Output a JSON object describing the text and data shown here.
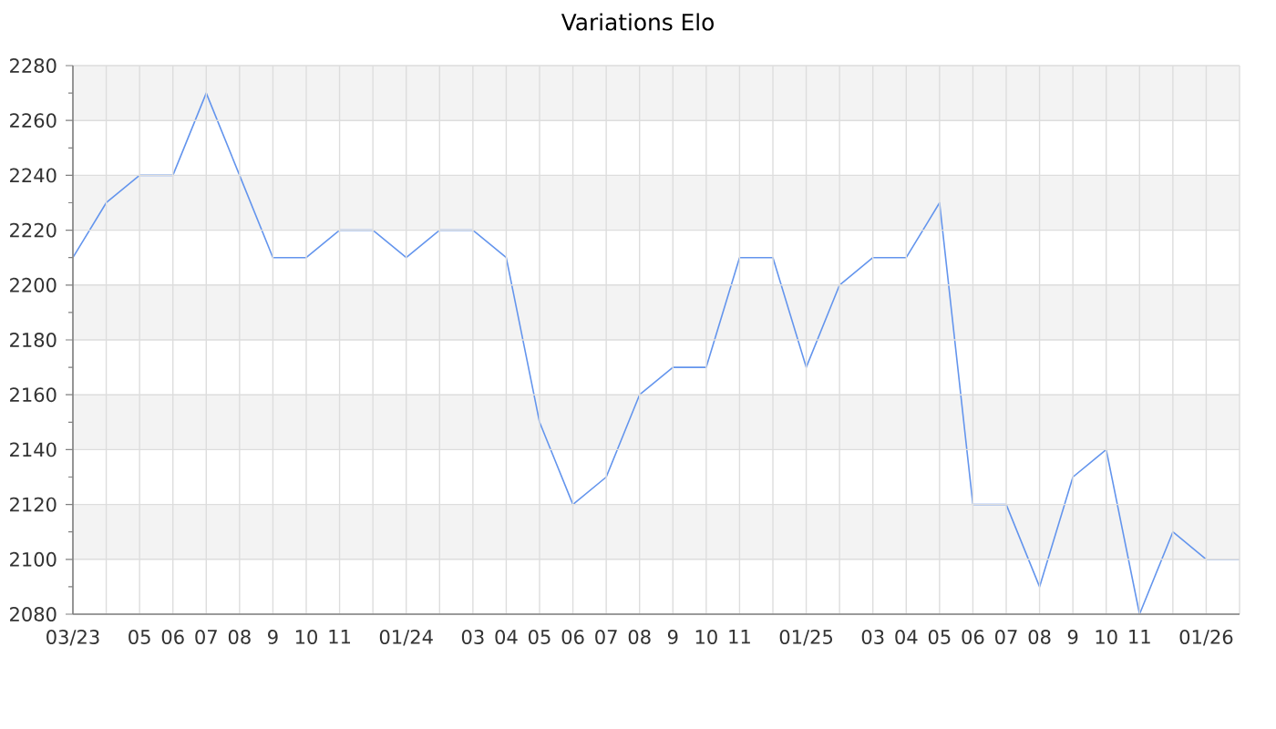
{
  "chart_data": {
    "type": "line",
    "title": "Variations Elo",
    "categories": [
      "03/23",
      null,
      "05",
      "06",
      "07",
      "08",
      "9",
      "10",
      "11",
      null,
      "01/24",
      null,
      "03",
      "04",
      "05",
      "06",
      "07",
      "08",
      "9",
      "10",
      "11",
      null,
      "01/25",
      null,
      "03",
      "04",
      "05",
      "06",
      "07",
      "08",
      "9",
      "10",
      "11",
      null,
      "01/26",
      null
    ],
    "values": [
      2210,
      2230,
      2240,
      2240,
      2270,
      2240,
      2210,
      2210,
      2220,
      2220,
      2210,
      2220,
      2220,
      2210,
      2150,
      2120,
      2130,
      2160,
      2170,
      2170,
      2210,
      2210,
      2170,
      2200,
      2210,
      2210,
      2230,
      2120,
      2120,
      2090,
      2130,
      2140,
      2080,
      2110,
      2100,
      2100
    ],
    "color": "#6495ed",
    "ylim": [
      2080,
      2280
    ],
    "yticks": [
      2080,
      2100,
      2120,
      2140,
      2160,
      2180,
      2200,
      2220,
      2240,
      2260,
      2280
    ],
    "grid": true,
    "bands": [
      {
        "axis": "y",
        "from": 2100,
        "to": 2120,
        "color": "#f3f3f3"
      },
      {
        "axis": "y",
        "from": 2140,
        "to": 2160,
        "color": "#f3f3f3"
      },
      {
        "axis": "y",
        "from": 2180,
        "to": 2200,
        "color": "#f3f3f3"
      },
      {
        "axis": "y",
        "from": 2220,
        "to": 2240,
        "color": "#f3f3f3"
      },
      {
        "axis": "y",
        "from": 2260,
        "to": 2280,
        "color": "#f3f3f3"
      }
    ]
  }
}
